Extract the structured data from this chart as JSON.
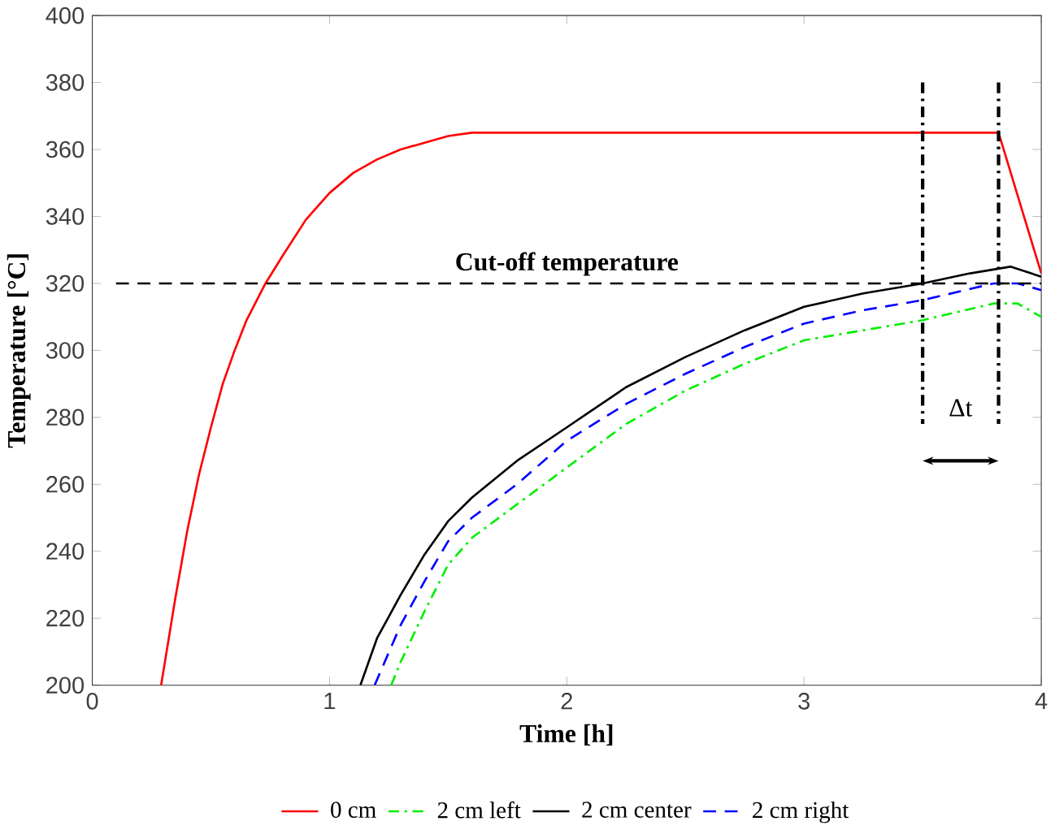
{
  "chart_data": {
    "type": "line",
    "xlabel": "Time [h]",
    "ylabel": "Temperature [°C]",
    "xlim": [
      0,
      4
    ],
    "ylim": [
      200,
      400
    ],
    "xticks": [
      0,
      1,
      2,
      3,
      4
    ],
    "yticks": [
      200,
      220,
      240,
      260,
      280,
      300,
      320,
      340,
      360,
      380,
      400
    ],
    "grid": false,
    "legend": "bottom",
    "marker": "none",
    "series": [
      {
        "name": "0 cm",
        "color": "#ff0000",
        "line_style": "solid",
        "x": [
          0.29,
          0.35,
          0.4,
          0.45,
          0.5,
          0.55,
          0.6,
          0.65,
          0.73,
          0.8,
          0.9,
          1.0,
          1.1,
          1.2,
          1.3,
          1.4,
          1.5,
          1.6,
          2.0,
          2.5,
          3.0,
          3.5,
          3.82,
          4.0
        ],
        "values": [
          200,
          226,
          246,
          263,
          277,
          290,
          300,
          309,
          320,
          328,
          339,
          347,
          353,
          357,
          360,
          362,
          364,
          365,
          365,
          365,
          365,
          365,
          365,
          323
        ]
      },
      {
        "name": "2 cm left",
        "color": "#00ee00",
        "line_style": "dashdot",
        "x": [
          1.26,
          1.3,
          1.4,
          1.5,
          1.6,
          1.79,
          2.0,
          2.25,
          2.5,
          2.75,
          3.0,
          3.25,
          3.5,
          3.8,
          3.9,
          4.0
        ],
        "values": [
          200,
          207,
          222,
          236,
          244,
          254,
          265,
          278,
          288,
          296,
          303,
          306,
          309,
          314,
          314,
          310
        ]
      },
      {
        "name": "2 cm center",
        "color": "#000000",
        "line_style": "solid",
        "x": [
          1.13,
          1.2,
          1.3,
          1.4,
          1.5,
          1.6,
          1.79,
          2.0,
          2.25,
          2.5,
          2.75,
          3.0,
          3.25,
          3.5,
          3.7,
          3.87,
          4.0
        ],
        "values": [
          200,
          214,
          227,
          239,
          249,
          256,
          267,
          277,
          289,
          298,
          306,
          313,
          317,
          320,
          323,
          325,
          322
        ]
      },
      {
        "name": "2 cm right",
        "color": "#0000ff",
        "line_style": "dashed",
        "x": [
          1.19,
          1.3,
          1.4,
          1.5,
          1.6,
          1.79,
          2.0,
          2.25,
          2.5,
          2.75,
          3.0,
          3.25,
          3.5,
          3.8,
          3.9,
          4.0
        ],
        "values": [
          200,
          218,
          231,
          243,
          250,
          260,
          273,
          284,
          293,
          301,
          308,
          312,
          315,
          320,
          320,
          318
        ]
      }
    ],
    "ref_lines": [
      {
        "axis": "y",
        "value": 320,
        "label": "Cut-off temperature",
        "color": "#000000",
        "line_style": "dashed"
      },
      {
        "axis": "x",
        "value": 3.5,
        "color": "#000000",
        "line_style": "dashdot"
      },
      {
        "axis": "x",
        "value": 3.82,
        "color": "#000000",
        "line_style": "dashdot"
      }
    ],
    "annotations": [
      "Δt"
    ]
  }
}
